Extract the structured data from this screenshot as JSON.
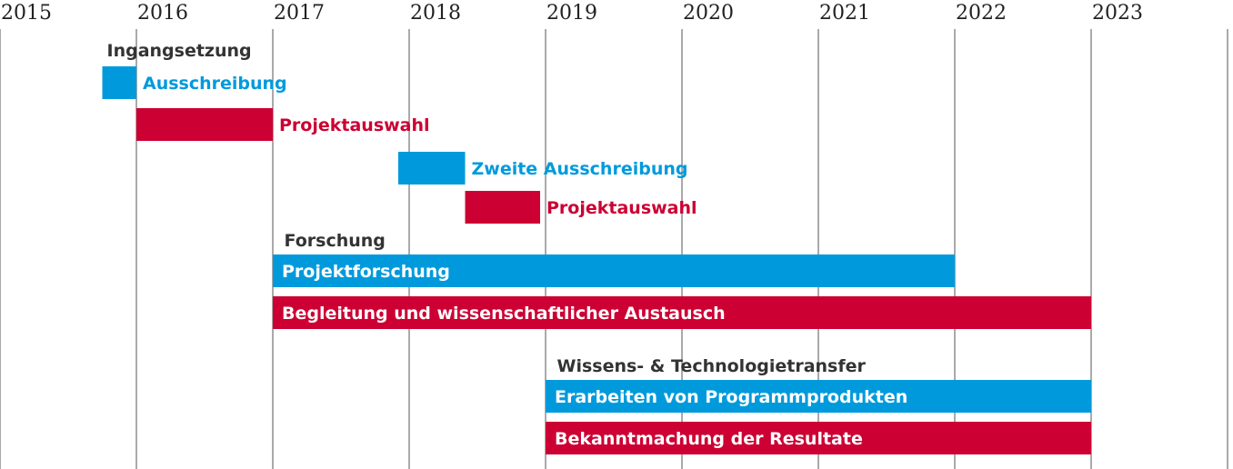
{
  "chart_data": {
    "type": "gantt",
    "title": "",
    "x_axis": {
      "type": "year",
      "range": [
        2015,
        2024
      ],
      "tick_labels": [
        "2015",
        "2016",
        "2017",
        "2018",
        "2019",
        "2020",
        "2021",
        "2022",
        "2023"
      ],
      "grid": true
    },
    "colors": {
      "blue": "#009ADC",
      "red": "#CC0033",
      "section_text": "#333333"
    },
    "sections": [
      {
        "label": "Ingangsetzung",
        "start": 2015.75
      },
      {
        "label": "Forschung",
        "start": 2017.05
      },
      {
        "label": "Wissens- & Technologietransfer",
        "start": 2019.05
      }
    ],
    "tasks": [
      {
        "label": "Ausschreibung",
        "start": 2015.75,
        "end": 2016.0,
        "color": "blue",
        "label_position": "outside"
      },
      {
        "label": "Projektauswahl",
        "start": 2016.0,
        "end": 2017.0,
        "color": "red",
        "label_position": "outside"
      },
      {
        "label": "Zweite Ausschreibung",
        "start": 2017.92,
        "end": 2018.41,
        "color": "blue",
        "label_position": "outside"
      },
      {
        "label": "Projektauswahl",
        "start": 2018.41,
        "end": 2018.96,
        "color": "red",
        "label_position": "outside"
      },
      {
        "label": "Projektforschung",
        "start": 2017.0,
        "end": 2022.0,
        "color": "blue",
        "label_position": "inside"
      },
      {
        "label": "Begleitung und wissenschaftlicher Austausch",
        "start": 2017.0,
        "end": 2023.0,
        "color": "red",
        "label_position": "inside"
      },
      {
        "label": "Erarbeiten von Programmprodukten",
        "start": 2019.0,
        "end": 2023.0,
        "color": "blue",
        "label_position": "inside"
      },
      {
        "label": "Bekanntmachung der Resultate",
        "start": 2019.0,
        "end": 2023.0,
        "color": "red",
        "label_position": "inside"
      }
    ]
  }
}
